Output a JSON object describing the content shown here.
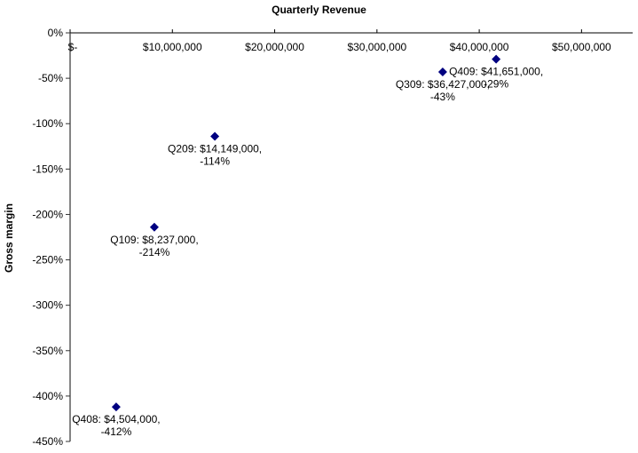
{
  "chart_data": {
    "type": "scatter",
    "title": "Quarterly Revenue",
    "xlabel": "",
    "ylabel": "Gross margin",
    "xlim": [
      0,
      55000000
    ],
    "ylim": [
      -450,
      0
    ],
    "x_ticks": [
      0,
      10000000,
      20000000,
      30000000,
      40000000,
      50000000
    ],
    "x_tick_labels": [
      "$-",
      "$10,000,000",
      "$20,000,000",
      "$30,000,000",
      "$40,000,000",
      "$50,000,000"
    ],
    "x_axis_position": "top",
    "y_ticks": [
      0,
      -50,
      -100,
      -150,
      -200,
      -250,
      -300,
      -350,
      -400,
      -450
    ],
    "y_tick_labels": [
      "0%",
      "-50%",
      "-100%",
      "-150%",
      "-200%",
      "-250%",
      "-300%",
      "-350%",
      "-400%",
      "-450%"
    ],
    "grid": false,
    "legend": null,
    "marker": "diamond",
    "marker_color": "#000080",
    "points": [
      {
        "label": "Q408",
        "x": 4504000,
        "y": -412,
        "label_line1": "Q408: $4,504,000,",
        "label_line2": "-412%"
      },
      {
        "label": "Q109",
        "x": 8237000,
        "y": -214,
        "label_line1": "Q109: $8,237,000,",
        "label_line2": "-214%"
      },
      {
        "label": "Q209",
        "x": 14149000,
        "y": -114,
        "label_line1": "Q209: $14,149,000,",
        "label_line2": "-114%"
      },
      {
        "label": "Q309",
        "x": 36427000,
        "y": -43,
        "label_line1": "Q309: $36,427,000,",
        "label_line2": "-43%"
      },
      {
        "label": "Q409",
        "x": 41651000,
        "y": -29,
        "label_line1": "Q409: $41,651,000,",
        "label_line2": "-29%"
      }
    ]
  }
}
